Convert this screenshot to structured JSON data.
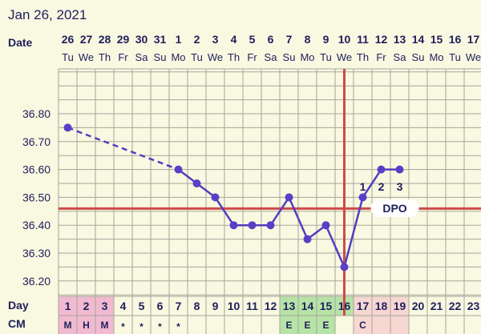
{
  "header": {
    "date_title": "Jan 26, 2021",
    "date_row_label": "Date",
    "day_row_label": "Day",
    "cm_row_label": "CM"
  },
  "chart_data": {
    "type": "line",
    "title": "Jan 26, 2021",
    "dates": [
      "26",
      "27",
      "28",
      "29",
      "30",
      "31",
      "1",
      "2",
      "3",
      "4",
      "5",
      "6",
      "7",
      "8",
      "9",
      "10",
      "11",
      "12",
      "13",
      "14",
      "15",
      "16",
      "17"
    ],
    "weekdays": [
      "Tu",
      "We",
      "Th",
      "Fr",
      "Sa",
      "Su",
      "Mo",
      "Tu",
      "We",
      "Th",
      "Fr",
      "Sa",
      "Su",
      "Mo",
      "Tu",
      "We",
      "Th",
      "Fr",
      "Sa",
      "Su",
      "Mo",
      "Tu",
      "We"
    ],
    "cycle_days": [
      "1",
      "2",
      "3",
      "4",
      "5",
      "6",
      "7",
      "8",
      "9",
      "10",
      "11",
      "12",
      "13",
      "14",
      "15",
      "16",
      "17",
      "18",
      "19",
      "20",
      "21",
      "22",
      "23"
    ],
    "cm": [
      "M",
      "H",
      "M",
      "*",
      "*",
      "*",
      "*",
      "",
      "",
      "",
      "",
      "",
      "E",
      "E",
      "E",
      "",
      "C",
      "",
      "",
      "",
      "",
      "",
      ""
    ],
    "y_ticks": [
      "36.80",
      "36.70",
      "36.60",
      "36.50",
      "36.40",
      "36.30",
      "36.20"
    ],
    "ylim": [
      36.15,
      36.95
    ],
    "temperatures": [
      36.75,
      null,
      null,
      null,
      null,
      null,
      36.6,
      36.55,
      36.5,
      36.4,
      36.4,
      36.4,
      36.5,
      36.35,
      36.4,
      36.25,
      36.5,
      36.6,
      36.6,
      null,
      null,
      null,
      null
    ],
    "coverline": 36.46,
    "ovulation_day": 16,
    "dpo_labels": [
      {
        "day": 17,
        "text": "1"
      },
      {
        "day": 18,
        "text": "2"
      },
      {
        "day": 19,
        "text": "3"
      }
    ],
    "dpo_text": "DPO",
    "colors": {
      "line": "#4f3fc0",
      "marker": "#5a3fc6",
      "coverline": "#cf4a4a",
      "ovulation": "#cf4a4a",
      "grid": "#a7a59a",
      "background": "#f9f8e1",
      "period_cells": "#f1bad0",
      "fertile_cells": "#b7e3a6",
      "luteal_cells": "#f7d7d2"
    }
  }
}
